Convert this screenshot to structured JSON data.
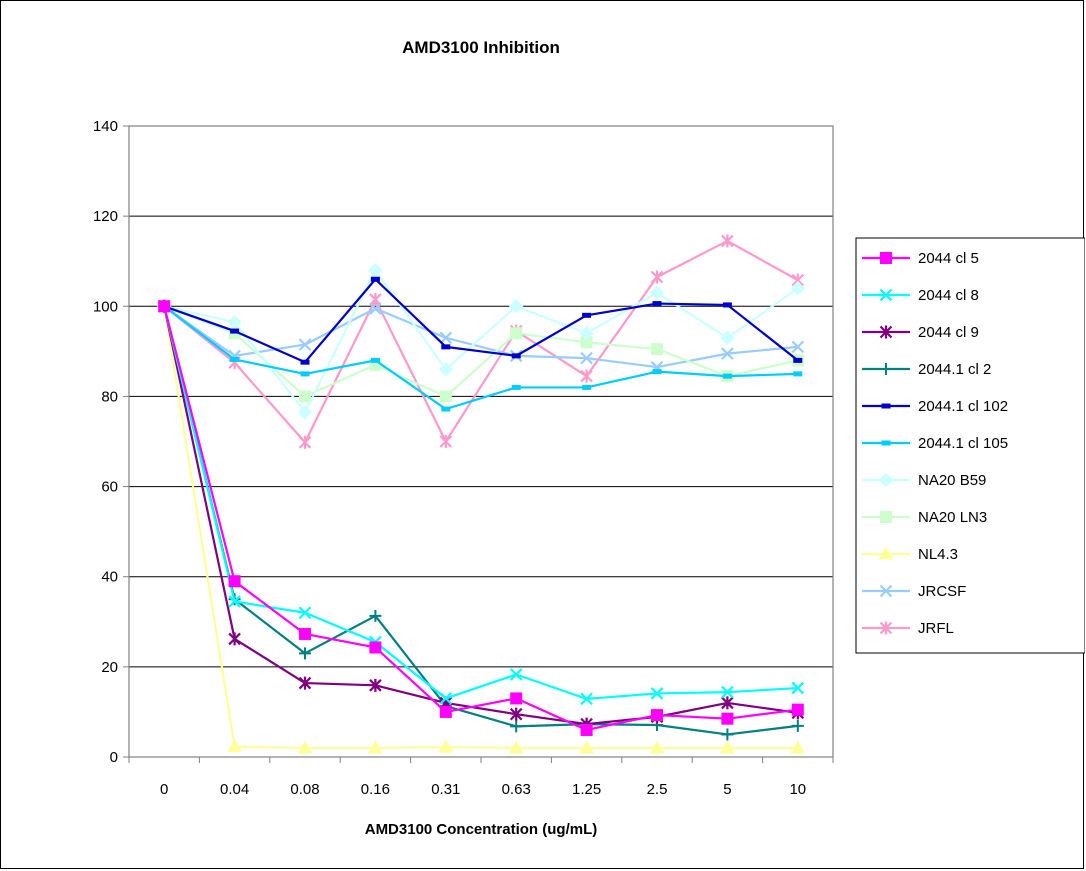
{
  "chart_data": {
    "type": "line",
    "title": "AMD3100 Inhibition",
    "xlabel": "AMD3100 Concentration (ug/mL)",
    "ylabel": "",
    "categories": [
      "0",
      "0.04",
      "0.08",
      "0.16",
      "0.31",
      "0.63",
      "1.25",
      "2.5",
      "5",
      "10"
    ],
    "ylim": [
      0,
      140
    ],
    "yticks": [
      0,
      20,
      40,
      60,
      80,
      100,
      120,
      140
    ],
    "grid": "horizontal major gridlines",
    "legend_position": "right",
    "series": [
      {
        "name": "2044 cl 5",
        "color": "#ff00ff",
        "marker": "square",
        "values": [
          100,
          39,
          27.3,
          24.3,
          10,
          13,
          6,
          9.3,
          8.5,
          10.5
        ]
      },
      {
        "name": "2044 cl 8",
        "color": "#00ffff",
        "marker": "x",
        "values": [
          100,
          34.5,
          32,
          25.5,
          13,
          18.3,
          12.9,
          14.1,
          14.4,
          15.3
        ]
      },
      {
        "name": "2044 cl 9",
        "color": "#800080",
        "marker": "star",
        "values": [
          100,
          26.2,
          16.4,
          15.9,
          12,
          9.5,
          7.3,
          8.9,
          12,
          9.8
        ]
      },
      {
        "name": "2044.1 cl 2",
        "color": "#008080",
        "marker": "plus",
        "values": [
          100,
          35,
          23,
          31.3,
          11.3,
          6.8,
          7.3,
          7.1,
          5,
          6.9
        ]
      },
      {
        "name": "2044.1 cl 102",
        "color": "#0000cc",
        "marker": "dash",
        "values": [
          100,
          94.5,
          87.6,
          106,
          91,
          89,
          98,
          100.6,
          100.3,
          88
        ]
      },
      {
        "name": "2044.1 cl 105",
        "color": "#00ccff",
        "marker": "dash",
        "values": [
          100,
          88.2,
          85,
          88,
          77.2,
          82,
          82,
          85.5,
          84.5,
          85
        ]
      },
      {
        "name": "NA20 B59",
        "color": "#ccffff",
        "marker": "diamond",
        "values": [
          100,
          96.5,
          76.5,
          108,
          86,
          100,
          94,
          103,
          93,
          104
        ]
      },
      {
        "name": "NA20 LN3",
        "color": "#ccffcc",
        "marker": "square",
        "values": [
          100,
          94,
          80,
          87,
          80,
          94,
          92,
          90.5,
          84.5,
          88
        ]
      },
      {
        "name": "NL4.3",
        "color": "#ffff99",
        "marker": "triangle",
        "values": [
          100,
          2.3,
          2,
          2,
          2.2,
          2,
          2,
          2,
          2,
          2
        ]
      },
      {
        "name": "JRCSF",
        "color": "#99ccff",
        "marker": "x",
        "values": [
          100,
          89,
          91.5,
          99.5,
          93,
          89,
          88.5,
          86.5,
          89.5,
          91
        ]
      },
      {
        "name": "JRFL",
        "color": "#ff99cc",
        "marker": "star",
        "values": [
          100,
          87.5,
          69.8,
          101.5,
          70,
          94.5,
          84.5,
          106.5,
          114.5,
          105.8
        ]
      }
    ]
  }
}
